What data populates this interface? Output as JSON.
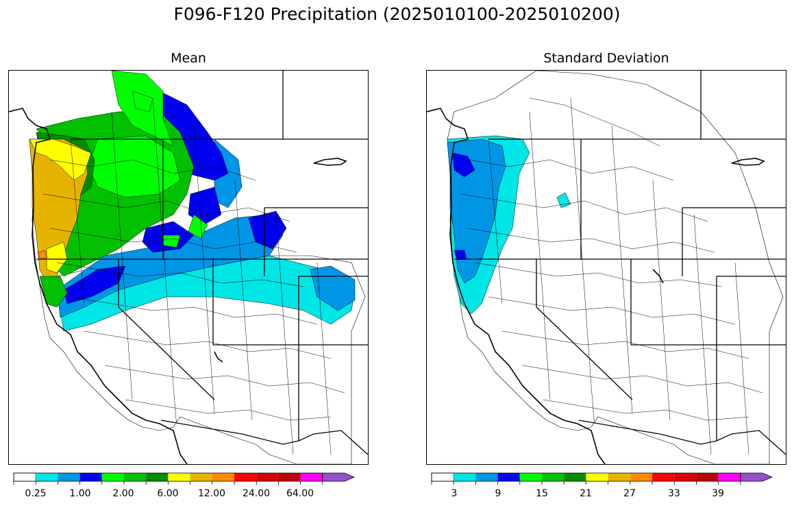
{
  "figure": {
    "title": "F096-F120 Precipitation (2025010100-2025010200)"
  },
  "panels": [
    {
      "id": "mean",
      "title": "Mean",
      "colorbar": {
        "colors": [
          "#ffffff",
          "#00e5e5",
          "#0096e6",
          "#0000f0",
          "#00ff00",
          "#00c000",
          "#008c00",
          "#ffff00",
          "#e6b400",
          "#ff8c00",
          "#ff0000",
          "#d70000",
          "#b90000",
          "#ff00ff",
          "#9650c8"
        ],
        "tick_labels": [
          "0.25",
          "1.00",
          "2.00",
          "6.00",
          "12.00",
          "24.00",
          "64.00"
        ],
        "extend": "max"
      }
    },
    {
      "id": "stdev",
      "title": "Standard Deviation",
      "colorbar": {
        "colors": [
          "#ffffff",
          "#00e5e5",
          "#0096e6",
          "#0000f0",
          "#00ff00",
          "#00c000",
          "#008c00",
          "#ffff00",
          "#e6b400",
          "#ff8c00",
          "#ff0000",
          "#d70000",
          "#b90000",
          "#ff00ff",
          "#9650c8"
        ],
        "tick_labels": [
          "3",
          "9",
          "15",
          "21",
          "27",
          "33",
          "39"
        ],
        "extend": "max"
      }
    }
  ]
}
